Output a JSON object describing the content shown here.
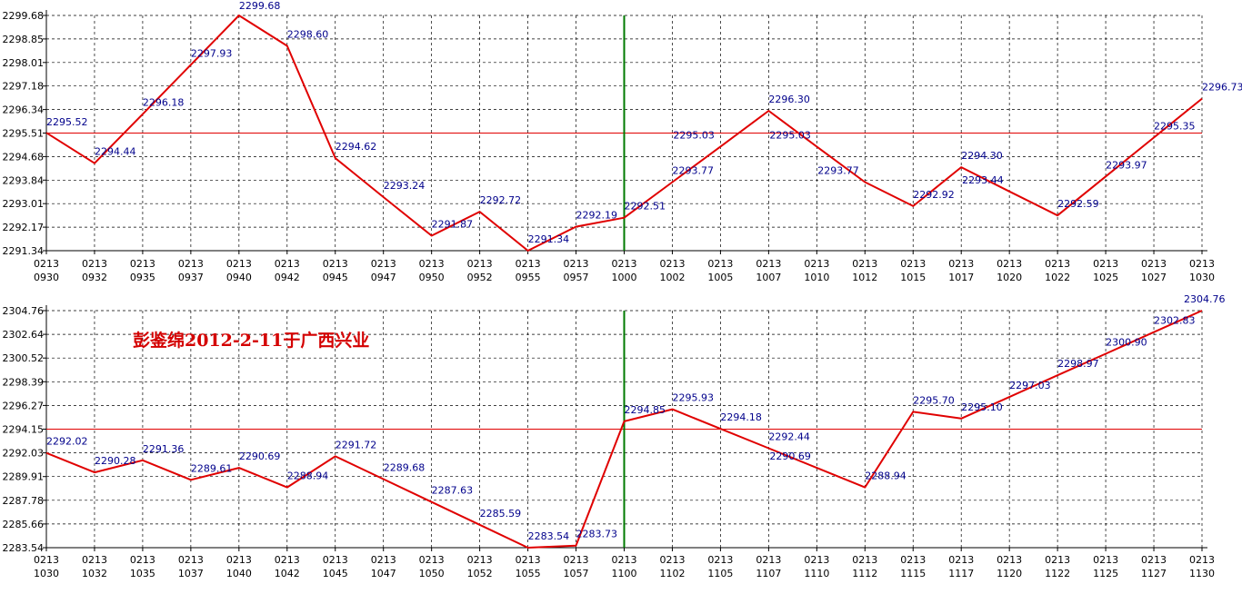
{
  "chart_data": [
    {
      "type": "line",
      "x_top": [
        "0213",
        "0213",
        "0213",
        "0213",
        "0213",
        "0213",
        "0213",
        "0213",
        "0213",
        "0213",
        "0213",
        "0213",
        "0213",
        "0213",
        "0213",
        "0213",
        "0213",
        "0213",
        "0213",
        "0213",
        "0213",
        "0213",
        "0213",
        "0213",
        "0213"
      ],
      "x_bottom": [
        "0930",
        "0932",
        "0935",
        "0937",
        "0940",
        "0942",
        "0945",
        "0947",
        "0950",
        "0952",
        "0955",
        "0957",
        "1000",
        "1002",
        "1005",
        "1007",
        "1010",
        "1012",
        "1015",
        "1017",
        "1020",
        "1022",
        "1025",
        "1027",
        "1030"
      ],
      "yticks": [
        "2299.68",
        "2298.85",
        "2298.01",
        "2297.18",
        "2296.34",
        "2295.51",
        "2294.68",
        "2293.84",
        "2293.01",
        "2292.17",
        "2291.34"
      ],
      "ylim": [
        2291.34,
        2299.68
      ],
      "reference_line": 2295.51,
      "vertical_marker_index": 12,
      "points": [
        {
          "i": 0,
          "v": 2295.52,
          "label": "2295.52"
        },
        {
          "i": 1,
          "v": 2294.44,
          "label": "2294.44"
        },
        {
          "i": 2,
          "v": 2296.18,
          "label": "2296.18"
        },
        {
          "i": 3,
          "v": 2297.93,
          "label": "2297.93"
        },
        {
          "i": 4,
          "v": 2299.68,
          "label": "2299.68"
        },
        {
          "i": 5,
          "v": 2298.6,
          "label": "2298.60"
        },
        {
          "i": 6,
          "v": 2294.62,
          "label": "2294.62"
        },
        {
          "i": 7,
          "v": 2293.24,
          "label": "2293.24"
        },
        {
          "i": 8,
          "v": 2291.87,
          "label": "2291.87"
        },
        {
          "i": 9,
          "v": 2292.72,
          "label": "2292.72"
        },
        {
          "i": 10,
          "v": 2291.34,
          "label": "2291.34"
        },
        {
          "i": 11,
          "v": 2292.19,
          "label": "2292.19"
        },
        {
          "i": 12,
          "v": 2292.51,
          "label": "2292.51"
        },
        {
          "i": 13,
          "v": 2293.77,
          "label": "2293.77"
        },
        {
          "i": 14,
          "v": 2295.03,
          "label": "2295.03"
        },
        {
          "i": 15,
          "v": 2296.3,
          "label": "2296.30"
        },
        {
          "i": 16,
          "v": 2295.03,
          "label": "2295.03"
        },
        {
          "i": 17,
          "v": 2293.77,
          "label": "2293.77"
        },
        {
          "i": 18,
          "v": 2292.92,
          "label": "2292.92"
        },
        {
          "i": 19,
          "v": 2294.3,
          "label": "2294.30"
        },
        {
          "i": 20,
          "v": 2293.44,
          "label": "2293.44"
        },
        {
          "i": 21,
          "v": 2292.59,
          "label": "2292.59"
        },
        {
          "i": 22,
          "v": 2293.97,
          "label": "2293.97"
        },
        {
          "i": 23,
          "v": 2295.35,
          "label": "2295.35"
        },
        {
          "i": 24,
          "v": 2296.73,
          "label": "2296.73"
        }
      ]
    },
    {
      "type": "line",
      "x_top": [
        "0213",
        "0213",
        "0213",
        "0213",
        "0213",
        "0213",
        "0213",
        "0213",
        "0213",
        "0213",
        "0213",
        "0213",
        "0213",
        "0213",
        "0213",
        "0213",
        "0213",
        "0213",
        "0213",
        "0213",
        "0213",
        "0213",
        "0213",
        "0213",
        "0213"
      ],
      "x_bottom": [
        "1030",
        "1032",
        "1035",
        "1037",
        "1040",
        "1042",
        "1045",
        "1047",
        "1050",
        "1052",
        "1055",
        "1057",
        "1100",
        "1102",
        "1105",
        "1107",
        "1110",
        "1112",
        "1115",
        "1117",
        "1120",
        "1122",
        "1125",
        "1127",
        "1130"
      ],
      "yticks": [
        "2304.76",
        "2302.64",
        "2300.52",
        "2298.39",
        "2296.27",
        "2294.15",
        "2292.03",
        "2289.91",
        "2287.78",
        "2285.66",
        "2283.54"
      ],
      "ylim": [
        2283.54,
        2304.76
      ],
      "reference_line": 2294.15,
      "vertical_marker_index": 12,
      "annotation": "彭鉴绵2012-2-11于广西兴业",
      "points": [
        {
          "i": 0,
          "v": 2292.02,
          "label": "2292.02"
        },
        {
          "i": 1,
          "v": 2290.28,
          "label": "2290.28"
        },
        {
          "i": 2,
          "v": 2291.36,
          "label": "2291.36"
        },
        {
          "i": 3,
          "v": 2289.61,
          "label": "2289.61"
        },
        {
          "i": 4,
          "v": 2290.69,
          "label": "2290.69"
        },
        {
          "i": 5,
          "v": 2288.94,
          "label": "2288.94"
        },
        {
          "i": 6,
          "v": 2291.72,
          "label": "2291.72"
        },
        {
          "i": 7,
          "v": 2289.68,
          "label": "2289.68"
        },
        {
          "i": 8,
          "v": 2287.63,
          "label": "2287.63"
        },
        {
          "i": 9,
          "v": 2285.59,
          "label": "2285.59"
        },
        {
          "i": 10,
          "v": 2283.54,
          "label": "2283.54"
        },
        {
          "i": 11,
          "v": 2283.73,
          "label": "2283.73"
        },
        {
          "i": 12,
          "v": 2294.85,
          "label": "2294.85"
        },
        {
          "i": 13,
          "v": 2295.93,
          "label": "2295.93"
        },
        {
          "i": 14,
          "v": 2294.18,
          "label": "2294.18"
        },
        {
          "i": 15,
          "v": 2292.44,
          "label": "2292.44"
        },
        {
          "i": 16,
          "v": 2290.69,
          "label": "2290.69"
        },
        {
          "i": 17,
          "v": 2288.94,
          "label": "2288.94"
        },
        {
          "i": 18,
          "v": 2295.7,
          "label": "2295.70"
        },
        {
          "i": 19,
          "v": 2295.1,
          "label": "2295.10"
        },
        {
          "i": 20,
          "v": 2297.03,
          "label": "2297.03"
        },
        {
          "i": 21,
          "v": 2298.97,
          "label": "2298.97"
        },
        {
          "i": 22,
          "v": 2300.9,
          "label": "2300.90"
        },
        {
          "i": 23,
          "v": 2302.83,
          "label": "2302.83"
        },
        {
          "i": 24,
          "v": 2304.76,
          "label": "2304.76"
        }
      ]
    }
  ],
  "colors": {
    "line": "#e00000",
    "reference": "#e00000",
    "marker": "#007a00",
    "grid": "#000000",
    "label": "#00008b",
    "annotation": "#d40000"
  }
}
